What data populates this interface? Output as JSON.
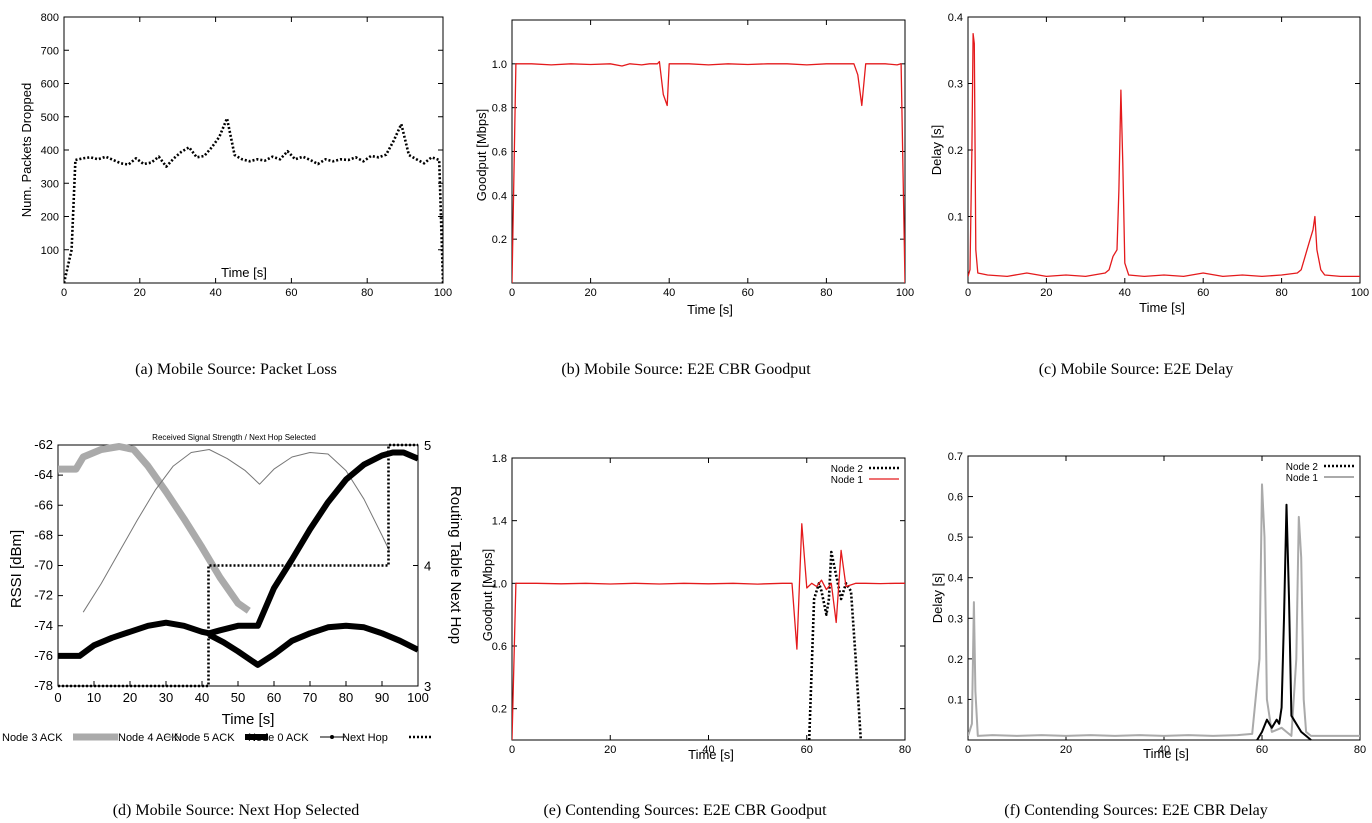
{
  "chart_data": [
    {
      "id": "a",
      "type": "line",
      "caption": "(a) Mobile Source: Packet Loss",
      "xlabel": "Time [s]",
      "ylabel": "Num. Packets Dropped",
      "xlim": [
        0,
        100
      ],
      "ylim": [
        0,
        800
      ],
      "xticks": [
        0,
        20,
        40,
        60,
        80,
        100
      ],
      "yticks": [
        100,
        200,
        300,
        400,
        500,
        600,
        700,
        800
      ],
      "series": [
        {
          "style": "dotted-black",
          "x": [
            0,
            2,
            3,
            5,
            7,
            9,
            11,
            13,
            15,
            17,
            19,
            21,
            23,
            25,
            27,
            29,
            31,
            33,
            35,
            37,
            39,
            41,
            43,
            45,
            47,
            49,
            51,
            53,
            55,
            57,
            59,
            61,
            63,
            65,
            67,
            69,
            71,
            73,
            75,
            77,
            79,
            81,
            83,
            85,
            87,
            89,
            91,
            93,
            95,
            97,
            99,
            100
          ],
          "y": [
            0,
            100,
            370,
            375,
            378,
            372,
            380,
            370,
            360,
            356,
            375,
            358,
            362,
            380,
            350,
            375,
            395,
            408,
            378,
            382,
            408,
            440,
            495,
            385,
            372,
            366,
            372,
            368,
            380,
            372,
            396,
            372,
            380,
            370,
            358,
            372,
            366,
            372,
            370,
            378,
            366,
            382,
            378,
            386,
            428,
            478,
            385,
            372,
            360,
            378,
            370,
            0
          ]
        }
      ]
    },
    {
      "id": "b",
      "type": "line",
      "caption": "(b) Mobile Source: E2E CBR Goodput",
      "xlabel": "Time [s]",
      "ylabel": "Goodput [Mbps]",
      "xlim": [
        0,
        100
      ],
      "ylim": [
        0,
        1.2
      ],
      "xticks": [
        0,
        20,
        40,
        60,
        80,
        100
      ],
      "yticks": [
        0.2,
        0.4,
        0.6,
        0.8,
        1.0
      ],
      "ytick_labels": [
        "0.2",
        "0.4",
        "0.6",
        "0.8",
        "1.0"
      ],
      "series": [
        {
          "style": "red",
          "x": [
            0,
            1,
            5,
            10,
            15,
            20,
            25,
            28,
            30,
            33,
            35,
            37,
            37.5,
            38.5,
            39.5,
            40,
            45,
            50,
            55,
            60,
            65,
            70,
            75,
            80,
            85,
            87,
            88,
            89,
            90,
            95,
            98,
            99,
            100
          ],
          "y": [
            0,
            1.0,
            1.0,
            0.995,
            1.0,
            0.997,
            1.0,
            0.99,
            1.0,
            0.995,
            1.0,
            1.0,
            1.01,
            0.86,
            0.81,
            1.0,
            1.0,
            0.995,
            1.0,
            0.997,
            1.0,
            1.0,
            0.995,
            1.0,
            1.0,
            1.0,
            0.95,
            0.81,
            1.0,
            1.0,
            0.995,
            1.0,
            0
          ]
        }
      ]
    },
    {
      "id": "c",
      "type": "line",
      "caption": "(c) Mobile Source: E2E Delay",
      "xlabel": "Time [s]",
      "ylabel": "Delay [s]",
      "xlim": [
        0,
        100
      ],
      "ylim": [
        0,
        0.4
      ],
      "xticks": [
        0,
        20,
        40,
        60,
        80,
        100
      ],
      "yticks": [
        0.1,
        0.2,
        0.3,
        0.4
      ],
      "series": [
        {
          "style": "red",
          "x": [
            0,
            0.5,
            1,
            1.3,
            1.6,
            2,
            2.5,
            5,
            10,
            15,
            20,
            25,
            30,
            35,
            36,
            37,
            38,
            38.5,
            39,
            39.5,
            40,
            41,
            45,
            50,
            55,
            60,
            65,
            70,
            75,
            80,
            84,
            85,
            86,
            87,
            88,
            88.5,
            89,
            90,
            91,
            95,
            100
          ],
          "y": [
            0.01,
            0.02,
            0.2,
            0.375,
            0.36,
            0.05,
            0.015,
            0.012,
            0.01,
            0.015,
            0.01,
            0.012,
            0.01,
            0.015,
            0.02,
            0.04,
            0.05,
            0.14,
            0.29,
            0.18,
            0.03,
            0.012,
            0.01,
            0.012,
            0.01,
            0.015,
            0.01,
            0.012,
            0.01,
            0.012,
            0.015,
            0.02,
            0.04,
            0.06,
            0.08,
            0.1,
            0.05,
            0.02,
            0.012,
            0.01,
            0.01
          ]
        }
      ]
    },
    {
      "id": "d",
      "type": "line",
      "caption": "(d) Mobile Source: Next Hop Selected",
      "title": "Received Signal Strength / Next Hop Selected",
      "xlabel": "Time [s]",
      "ylabel": "RSSI [dBm]",
      "y2label": "Routing Table Next Hop",
      "xlim": [
        0,
        100
      ],
      "ylim": [
        -78,
        -62
      ],
      "y2lim": [
        3,
        5
      ],
      "xticks": [
        0,
        10,
        20,
        30,
        40,
        50,
        60,
        70,
        80,
        90,
        100
      ],
      "yticks": [
        -78,
        -76,
        -74,
        -72,
        -70,
        -68,
        -66,
        -64,
        -62
      ],
      "y2ticks": [
        3,
        4,
        5
      ],
      "legend": [
        "Node 3 ACK",
        "Node 4 ACK",
        "Node 5 ACK",
        "Node 0 ACK",
        "Next Hop"
      ],
      "series": [
        {
          "name": "Node 3 ACK",
          "style": "gray-thick",
          "x": [
            0,
            5,
            7,
            12,
            17,
            21,
            25,
            30,
            35,
            40,
            45,
            50,
            53
          ],
          "y": [
            -63.6,
            -63.6,
            -62.8,
            -62.3,
            -62.1,
            -62.3,
            -63.4,
            -65.1,
            -66.9,
            -68.8,
            -70.8,
            -72.5,
            -73.0
          ]
        },
        {
          "name": "Node 4 ACK",
          "style": "gray-thin",
          "x": [
            7,
            12,
            17,
            22,
            27,
            32,
            37,
            42,
            47,
            52,
            56,
            60,
            65,
            70,
            75,
            80,
            85,
            90,
            92
          ],
          "y": [
            -73.1,
            -71.2,
            -69.1,
            -67.0,
            -65.0,
            -63.4,
            -62.5,
            -62.3,
            -62.9,
            -63.7,
            -64.6,
            -63.6,
            -62.8,
            -62.5,
            -62.6,
            -63.7,
            -65.6,
            -68.0,
            -69.0
          ]
        },
        {
          "name": "Node 0 ACK",
          "style": "black-thick",
          "x": [
            0,
            6,
            10,
            15,
            20,
            25,
            30,
            35,
            40,
            42,
            45,
            50,
            55.5,
            60,
            65,
            70,
            75,
            80,
            85,
            90,
            93,
            96,
            100
          ],
          "y": [
            -76.0,
            -76.0,
            -75.3,
            -74.8,
            -74.4,
            -74.0,
            -73.8,
            -74.0,
            -74.4,
            -74.5,
            -74.3,
            -74.0,
            -74.0,
            -71.5,
            -69.6,
            -67.6,
            -65.8,
            -64.3,
            -63.3,
            -62.7,
            -62.5,
            -62.5,
            -62.9
          ]
        },
        {
          "name": "Node 0 ACK (lower)",
          "style": "black-thick",
          "x": [
            42,
            46,
            50,
            55.5,
            60,
            65,
            70,
            75,
            80,
            85,
            90,
            95,
            100
          ],
          "y": [
            -74.6,
            -75.1,
            -75.7,
            -76.6,
            -75.9,
            -75.0,
            -74.5,
            -74.1,
            -74.0,
            -74.1,
            -74.5,
            -75.0,
            -75.6
          ]
        },
        {
          "name": "Next Hop",
          "style": "dotted-black",
          "axis": "y2",
          "x": [
            0,
            41.8,
            41.8,
            91.8,
            91.8,
            100
          ],
          "y": [
            3,
            3,
            4,
            4,
            5,
            5
          ]
        }
      ]
    },
    {
      "id": "e",
      "type": "line",
      "caption": "(e) Contending Sources: E2E CBR Goodput",
      "xlabel": "Time [s]",
      "ylabel": "Goodput [Mbps]",
      "xlim": [
        0,
        80
      ],
      "ylim": [
        0,
        1.8
      ],
      "xticks": [
        0,
        20,
        40,
        60,
        80
      ],
      "yticks": [
        0.2,
        0.6,
        1.0,
        1.4,
        1.8
      ],
      "ytick_labels": [
        "0.2",
        "0.6",
        "1.0",
        "1.4",
        "1.8"
      ],
      "legend": [
        "Node 2",
        "Node 1"
      ],
      "series": [
        {
          "name": "Node 2",
          "style": "dotted-black",
          "x": [
            60.5,
            61.5,
            62.5,
            63,
            64,
            64.5,
            65,
            66,
            67,
            68,
            69,
            70,
            71
          ],
          "y": [
            0,
            0.9,
            1.0,
            0.95,
            0.8,
            0.9,
            1.2,
            1.05,
            0.9,
            1.0,
            0.95,
            0.5,
            0
          ]
        },
        {
          "name": "Node 1",
          "style": "red",
          "x": [
            0,
            0.8,
            5,
            10,
            15,
            20,
            25,
            30,
            35,
            40,
            45,
            50,
            55,
            57,
            58,
            59,
            60,
            61,
            62,
            63,
            64,
            65,
            66,
            67,
            68,
            69,
            70,
            72,
            75,
            78,
            80
          ],
          "y": [
            0,
            1.0,
            1.0,
            0.997,
            1.0,
            0.996,
            1.0,
            0.996,
            1.0,
            0.997,
            1.0,
            0.995,
            1.0,
            1.0,
            0.58,
            1.38,
            0.97,
            1.0,
            0.98,
            1.02,
            0.96,
            1.0,
            0.75,
            1.21,
            0.98,
            0.99,
            1.0,
            1.0,
            0.998,
            1.0,
            1.0
          ]
        }
      ]
    },
    {
      "id": "f",
      "type": "line",
      "caption": "(f) Contending Sources: E2E CBR Delay",
      "xlabel": "Time [s]",
      "ylabel": "Delay [s]",
      "xlim": [
        0,
        80
      ],
      "ylim": [
        0,
        0.7
      ],
      "xticks": [
        0,
        20,
        40,
        60,
        80
      ],
      "yticks": [
        0.1,
        0.2,
        0.3,
        0.4,
        0.5,
        0.6,
        0.7
      ],
      "legend": [
        "Node 2",
        "Node 1"
      ],
      "series": [
        {
          "name": "Node 1",
          "style": "gray",
          "x": [
            0,
            0.8,
            1.2,
            1.5,
            2,
            5,
            10,
            15,
            20,
            25,
            30,
            35,
            40,
            45,
            50,
            55,
            58,
            59.5,
            60,
            60.5,
            61,
            62,
            64,
            65,
            66,
            67,
            67.5,
            68,
            68.5,
            69,
            70,
            72,
            75,
            80
          ],
          "y": [
            0.01,
            0.04,
            0.34,
            0.12,
            0.01,
            0.012,
            0.01,
            0.012,
            0.01,
            0.012,
            0.01,
            0.012,
            0.01,
            0.012,
            0.01,
            0.012,
            0.015,
            0.2,
            0.63,
            0.5,
            0.1,
            0.02,
            0.03,
            0.02,
            0.01,
            0.2,
            0.55,
            0.45,
            0.1,
            0.02,
            0.01,
            0.01,
            0.01,
            0.01
          ]
        },
        {
          "name": "Node 2",
          "style": "black",
          "x": [
            59,
            60,
            61,
            62,
            63,
            63.5,
            64,
            64.5,
            65,
            65.5,
            66,
            67,
            68,
            69,
            70
          ],
          "y": [
            0,
            0.02,
            0.05,
            0.03,
            0.05,
            0.04,
            0.08,
            0.3,
            0.58,
            0.35,
            0.06,
            0.04,
            0.02,
            0.01,
            0
          ]
        }
      ]
    }
  ],
  "colors": {
    "red": "#e41a1c",
    "black": "#000000",
    "gray": "#aaaaaa",
    "gray_thin": "#777777"
  }
}
